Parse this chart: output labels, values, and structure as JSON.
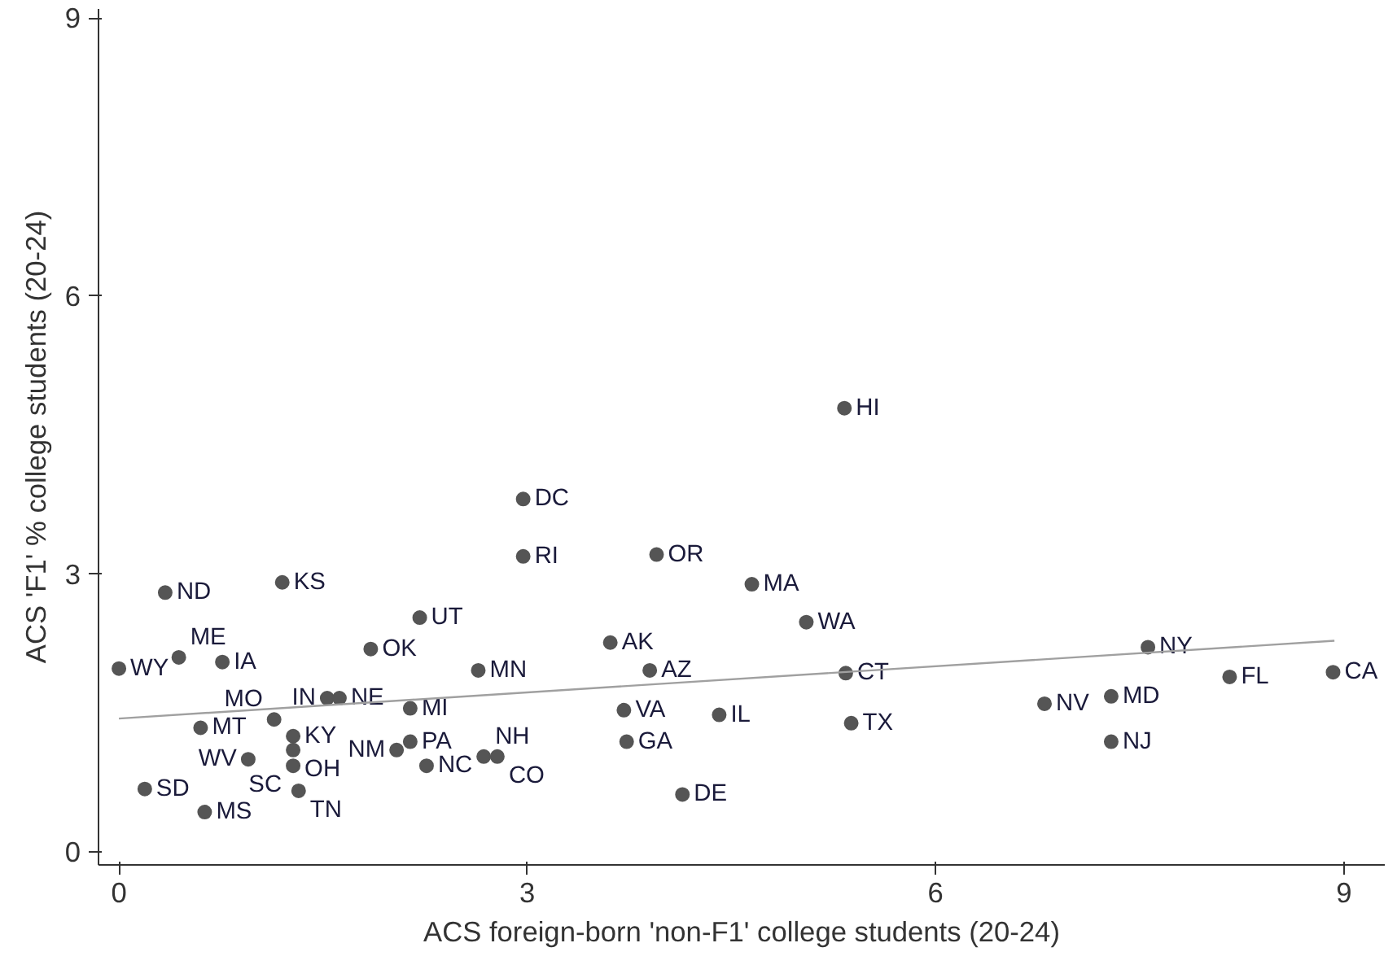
{
  "chart_data": {
    "type": "scatter",
    "xlabel": "ACS foreign-born 'non-F1' college students (20-24)",
    "ylabel": "ACS 'F1' % college students (20-24)",
    "xlim": [
      -0.15,
      9.3
    ],
    "ylim": [
      -0.14,
      9.1
    ],
    "xticks": [
      0,
      3,
      6,
      9
    ],
    "yticks": [
      0,
      3,
      6,
      9
    ],
    "grid": false,
    "series": [
      {
        "color": "#555555",
        "marker": "circle",
        "x": [
          5.33,
          2.97,
          2.97,
          3.95,
          4.65,
          5.05,
          3.61,
          3.9,
          5.34,
          3.71,
          4.41,
          3.73,
          5.38,
          4.14,
          6.8,
          7.29,
          7.29,
          7.56,
          8.16,
          8.92,
          0.34,
          1.2,
          2.21,
          1.85,
          2.64,
          0.0,
          0.44,
          0.76,
          1.53,
          1.62,
          2.14,
          0.6,
          1.14,
          1.28,
          1.28,
          0.95,
          1.28,
          1.32,
          0.19,
          0.63,
          2.14,
          2.04,
          2.26,
          2.68,
          2.78
        ],
        "values": [
          4.79,
          3.81,
          3.19,
          3.21,
          2.89,
          2.48,
          2.26,
          1.96,
          1.93,
          1.53,
          1.48,
          1.19,
          1.39,
          0.62,
          1.6,
          1.68,
          1.19,
          2.21,
          1.89,
          1.94,
          2.8,
          2.91,
          2.53,
          2.19,
          1.96,
          1.98,
          2.1,
          2.05,
          1.66,
          1.66,
          1.55,
          1.34,
          1.43,
          1.25,
          1.1,
          1.0,
          0.93,
          0.66,
          0.68,
          0.43,
          1.19,
          1.1,
          0.93,
          1.03,
          1.03
        ],
        "value_labels": [
          "HI",
          "DC",
          "RI",
          "OR",
          "MA",
          "WA",
          "AK",
          "AZ",
          "CT",
          "VA",
          "IL",
          "GA",
          "TX",
          "DE",
          "NV",
          "MD",
          "NJ",
          "NY",
          "FL",
          "CA",
          "ND",
          "KS",
          "UT",
          "OK",
          "MN",
          "WY",
          "ME",
          "IA",
          "IN",
          "NE",
          "MI",
          "MT",
          "MO",
          "KY",
          "OH",
          "WV",
          "SC",
          "TN",
          "SD",
          "MS",
          "PA",
          "NM",
          "NC",
          "NH",
          "CO"
        ]
      },
      {
        "type": "line",
        "marker": "none",
        "color": "#a0a0a0",
        "x": [
          0.0,
          8.93
        ],
        "values": [
          1.44,
          2.28
        ]
      }
    ]
  }
}
